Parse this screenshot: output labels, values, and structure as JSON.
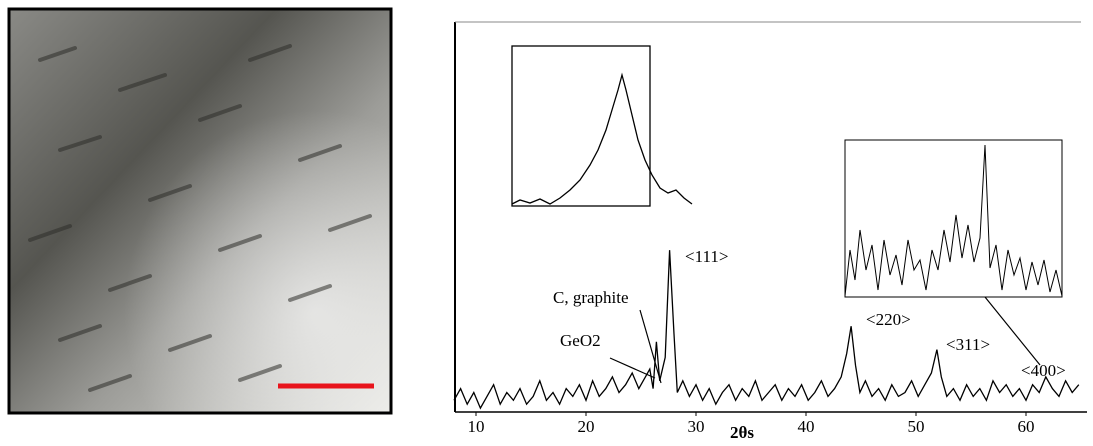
{
  "chart_data": {
    "type": "line",
    "x_label": "2θs",
    "xlim": [
      8,
      65
    ],
    "ylim": [
      0,
      100
    ],
    "xticks": [
      10,
      20,
      30,
      40,
      50,
      60
    ],
    "color": "#000000",
    "annotations": [
      "<111>",
      "C, graphite",
      "GeO2",
      "<220>",
      "<311>",
      "<400>"
    ],
    "x": [
      8,
      8.6,
      9.2,
      9.8,
      10.4,
      11,
      11.6,
      12.2,
      12.8,
      13.4,
      14,
      14.6,
      15.2,
      15.8,
      16.4,
      17,
      17.6,
      18.2,
      18.8,
      19.4,
      20,
      20.6,
      21.2,
      21.8,
      22.4,
      23,
      23.6,
      24.2,
      24.8,
      25.4,
      25.8,
      26.1,
      26.4,
      26.7,
      27.2,
      27.6,
      28,
      28.3,
      28.8,
      29.4,
      30,
      30.6,
      31.2,
      31.8,
      32.4,
      33,
      33.6,
      34.2,
      34.8,
      35.4,
      36,
      36.6,
      37.2,
      37.8,
      38.4,
      39,
      39.6,
      40.2,
      40.8,
      41.4,
      42,
      42.6,
      43.2,
      43.7,
      44.1,
      44.5,
      44.9,
      45.4,
      46,
      46.6,
      47.2,
      47.8,
      48.4,
      49,
      49.6,
      50.2,
      50.8,
      51.4,
      51.9,
      52.3,
      52.8,
      53.4,
      54,
      54.6,
      55.2,
      55.8,
      56.4,
      57,
      57.6,
      58.2,
      58.8,
      59.4,
      60,
      60.6,
      61.2,
      61.8,
      62.4,
      63,
      63.6,
      64.2,
      64.8
    ],
    "values": [
      3,
      6,
      2,
      5,
      1,
      4,
      7,
      2,
      5,
      3,
      6,
      2,
      4,
      8,
      3,
      5,
      2,
      6,
      4,
      7,
      3,
      8,
      4,
      6,
      9,
      5,
      7,
      10,
      6,
      9,
      11,
      6,
      18,
      8,
      14,
      41.5,
      20,
      5,
      8,
      4,
      7,
      3,
      6,
      2,
      5,
      7,
      3,
      6,
      4,
      8,
      3,
      5,
      7,
      3,
      6,
      4,
      7,
      3,
      5,
      8,
      4,
      6,
      9,
      15,
      22,
      12,
      5,
      8,
      4,
      6,
      3,
      7,
      4,
      5,
      8,
      4,
      7,
      10,
      16,
      9,
      4,
      6,
      3,
      7,
      4,
      6,
      3,
      8,
      5,
      7,
      4,
      6,
      3,
      7,
      5,
      9,
      6,
      4,
      8,
      5,
      7
    ]
  }
}
